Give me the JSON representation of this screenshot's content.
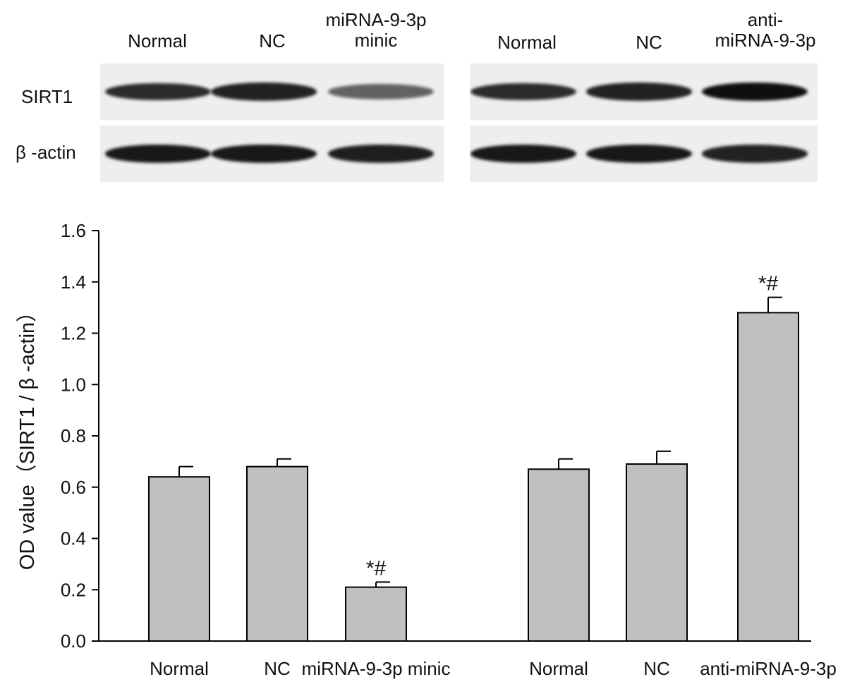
{
  "blot": {
    "left_lanes": [
      "Normal",
      "NC",
      "miRNA-9-3p\nminic"
    ],
    "right_lanes": [
      "Normal",
      "NC",
      "anti-\nmiRNA-9-3p"
    ],
    "rows": [
      "SIRT1",
      "β -actin"
    ],
    "intensity": {
      "sirt1_left": [
        0.85,
        0.9,
        0.55
      ],
      "actin_left": [
        0.95,
        0.95,
        0.92
      ],
      "sirt1_right": [
        0.85,
        0.9,
        1.0
      ],
      "actin_right": [
        0.95,
        0.95,
        0.9
      ]
    }
  },
  "chart_data": {
    "type": "bar",
    "title": "",
    "xlabel": "",
    "ylabel": "OD value（SIRT1 / β -actin）",
    "ylim": [
      0,
      1.6
    ],
    "yticks": [
      "0.0",
      "0.2",
      "0.4",
      "0.6",
      "0.8",
      "1.0",
      "1.2",
      "1.4",
      "1.6"
    ],
    "categories": [
      "Normal",
      "NC",
      "miRNA-9-3p minic",
      "Normal",
      "NC",
      "anti-miRNA-9-3p"
    ],
    "values": [
      0.64,
      0.68,
      0.21,
      0.67,
      0.69,
      1.28
    ],
    "errors": [
      0.04,
      0.03,
      0.02,
      0.04,
      0.05,
      0.06
    ],
    "annotations": [
      "",
      "",
      "*#",
      "",
      "",
      "*#"
    ],
    "bar_color": "#c0c0c0",
    "grid": false
  }
}
